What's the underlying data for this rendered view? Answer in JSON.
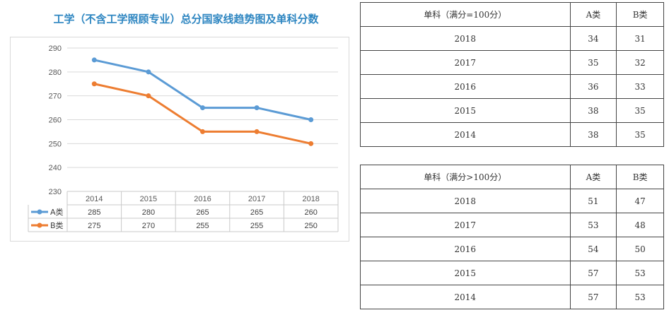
{
  "chart_data": {
    "type": "line",
    "title": "工学（不含工学照顾专业）总分国家线趋势图及单科分数",
    "categories": [
      "2014",
      "2015",
      "2016",
      "2017",
      "2018"
    ],
    "series": [
      {
        "name": "A类",
        "color": "#5B9BD5",
        "values": [
          285,
          280,
          265,
          265,
          260
        ]
      },
      {
        "name": "B类",
        "color": "#ED7D31",
        "values": [
          275,
          270,
          255,
          255,
          250
        ]
      }
    ],
    "ylim": [
      230,
      290
    ],
    "yticks": [
      230,
      240,
      250,
      260,
      270,
      280,
      290
    ],
    "xlabel": "",
    "ylabel": "",
    "grid": true,
    "legend": "data-table-below"
  },
  "table1": {
    "headers": [
      "单科（满分=100分）",
      "A类",
      "B类"
    ],
    "rows": [
      [
        "2018",
        "34",
        "31"
      ],
      [
        "2017",
        "35",
        "32"
      ],
      [
        "2016",
        "36",
        "33"
      ],
      [
        "2015",
        "38",
        "35"
      ],
      [
        "2014",
        "38",
        "35"
      ]
    ]
  },
  "table2": {
    "headers": [
      "单科（满分>100分）",
      "A类",
      "B类"
    ],
    "rows": [
      [
        "2018",
        "51",
        "47"
      ],
      [
        "2017",
        "53",
        "48"
      ],
      [
        "2016",
        "54",
        "50"
      ],
      [
        "2015",
        "57",
        "53"
      ],
      [
        "2014",
        "57",
        "53"
      ]
    ]
  }
}
